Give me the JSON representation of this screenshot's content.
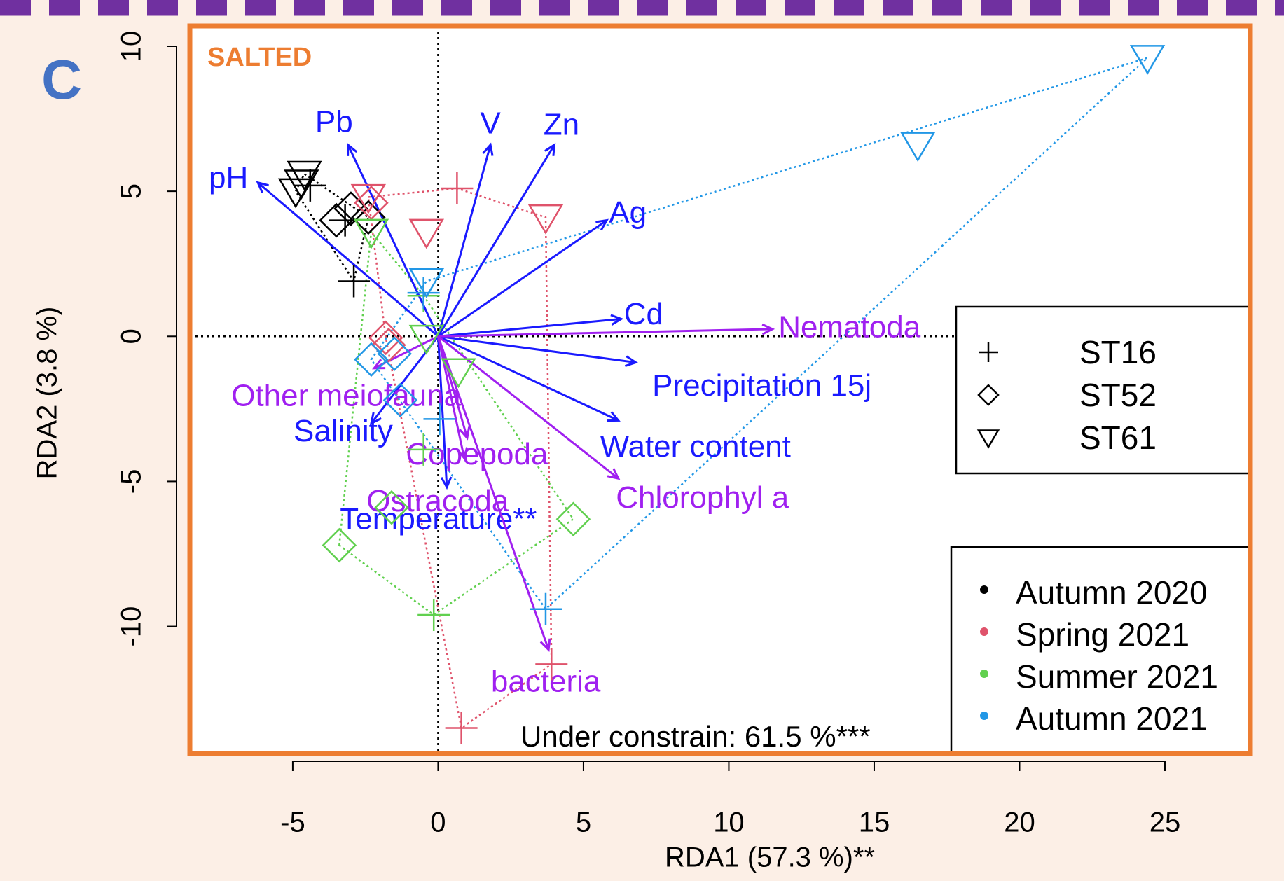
{
  "chart_data": {
    "type": "scatter",
    "panel_label": "C",
    "subtitle": "SALTED",
    "xlabel": "RDA1 (57.3 %)**",
    "ylabel": "RDA2 (3.8 %)",
    "annotation": "Under constrain: 61.5 %***",
    "xlim": [
      -8.54,
      27.94
    ],
    "ylim": [
      -14.38,
      10.7
    ],
    "xticks": [
      -5,
      0,
      5,
      10,
      15,
      20,
      25
    ],
    "yticks": [
      -10,
      -5,
      0,
      5,
      10
    ],
    "zero_lines": true,
    "stations": [
      {
        "name": "ST16",
        "marker": "plus"
      },
      {
        "name": "ST52",
        "marker": "diamond"
      },
      {
        "name": "ST61",
        "marker": "triangle"
      }
    ],
    "series": [
      {
        "name": "Autumn 2020",
        "color": "#000000",
        "x": [
          -4.4,
          -3.2,
          -2.9,
          -3.5,
          -3.0,
          -2.4,
          -4.6,
          -4.9,
          -4.7
        ],
        "y": [
          5.2,
          4.0,
          1.9,
          4.0,
          4.4,
          4.1,
          5.6,
          5.0,
          5.3
        ],
        "station": [
          "ST16",
          "ST16",
          "ST16",
          "ST52",
          "ST52",
          "ST52",
          "ST61",
          "ST61",
          "ST61"
        ]
      },
      {
        "name": "Spring 2021",
        "color": "#df536b",
        "x": [
          0.65,
          3.9,
          0.8,
          -1.8,
          -1.7,
          -2.3,
          -2.4,
          -0.4,
          3.7
        ],
        "y": [
          5.1,
          -11.3,
          -13.5,
          -0.05,
          -0.3,
          4.6,
          4.8,
          3.6,
          4.1
        ],
        "station": [
          "ST16",
          "ST16",
          "ST16",
          "ST52",
          "ST52",
          "ST52",
          "ST61",
          "ST61",
          "ST61"
        ]
      },
      {
        "name": "Summer 2021",
        "color": "#61d04f",
        "x": [
          -0.5,
          -0.5,
          -0.15,
          -1.6,
          -3.4,
          4.65,
          -2.3,
          -0.4,
          0.7
        ],
        "y": [
          1.4,
          -3.9,
          -9.6,
          -5.9,
          -7.2,
          -6.3,
          3.6,
          -0.05,
          -1.2
        ],
        "station": [
          "ST16",
          "ST16",
          "ST16",
          "ST52",
          "ST52",
          "ST52",
          "ST61",
          "ST61",
          "ST61"
        ]
      },
      {
        "name": "Autumn 2021",
        "color": "#2297e6",
        "x": [
          0.05,
          3.7,
          -0.5,
          -2.3,
          -1.3,
          -1.5,
          16.5,
          24.4,
          -0.4
        ],
        "y": [
          -2.85,
          -9.4,
          1.5,
          -0.8,
          -2.2,
          -0.6,
          6.6,
          9.6,
          1.9
        ],
        "station": [
          "ST16",
          "ST16",
          "ST16",
          "ST52",
          "ST52",
          "ST52",
          "ST61",
          "ST61",
          "ST61"
        ]
      }
    ],
    "arrows": [
      {
        "label": "Pb",
        "color": "#1a1aff",
        "x": -3.1,
        "y": 6.6
      },
      {
        "label": "pH",
        "color": "#1a1aff",
        "x": -6.2,
        "y": 5.3
      },
      {
        "label": "V",
        "color": "#1a1aff",
        "x": 1.8,
        "y": 6.6
      },
      {
        "label": "Zn",
        "color": "#1a1aff",
        "x": 4.0,
        "y": 6.6
      },
      {
        "label": "Ag",
        "color": "#1a1aff",
        "x": 5.8,
        "y": 4.0
      },
      {
        "label": "Cd",
        "color": "#1a1aff",
        "x": 6.3,
        "y": 0.6
      },
      {
        "label": "Precipitation 15j",
        "color": "#1a1aff",
        "x": 6.8,
        "y": -0.9
      },
      {
        "label": "Water content",
        "color": "#1a1aff",
        "x": 6.2,
        "y": -2.9
      },
      {
        "label": "Salinity",
        "color": "#1a1aff",
        "x": -2.3,
        "y": -3.0
      },
      {
        "label": "Temperature**",
        "color": "#1a1aff",
        "x": 0.3,
        "y": -5.2
      },
      {
        "label": "Nematoda",
        "color": "#a020f0",
        "x": 11.5,
        "y": 0.25
      },
      {
        "label": "Other meiofauna",
        "color": "#a020f0",
        "x": -2.2,
        "y": -1.1
      },
      {
        "label": "Copepoda",
        "color": "#a020f0",
        "x": 1.0,
        "y": -3.5
      },
      {
        "label": "Ostracoda",
        "color": "#a020f0",
        "x": 0.9,
        "y": -4.2
      },
      {
        "label": "Chlorophyl a",
        "color": "#a020f0",
        "x": 6.2,
        "y": -4.9
      },
      {
        "label": "bacteria",
        "color": "#a020f0",
        "x": 3.8,
        "y": -10.8
      }
    ]
  }
}
